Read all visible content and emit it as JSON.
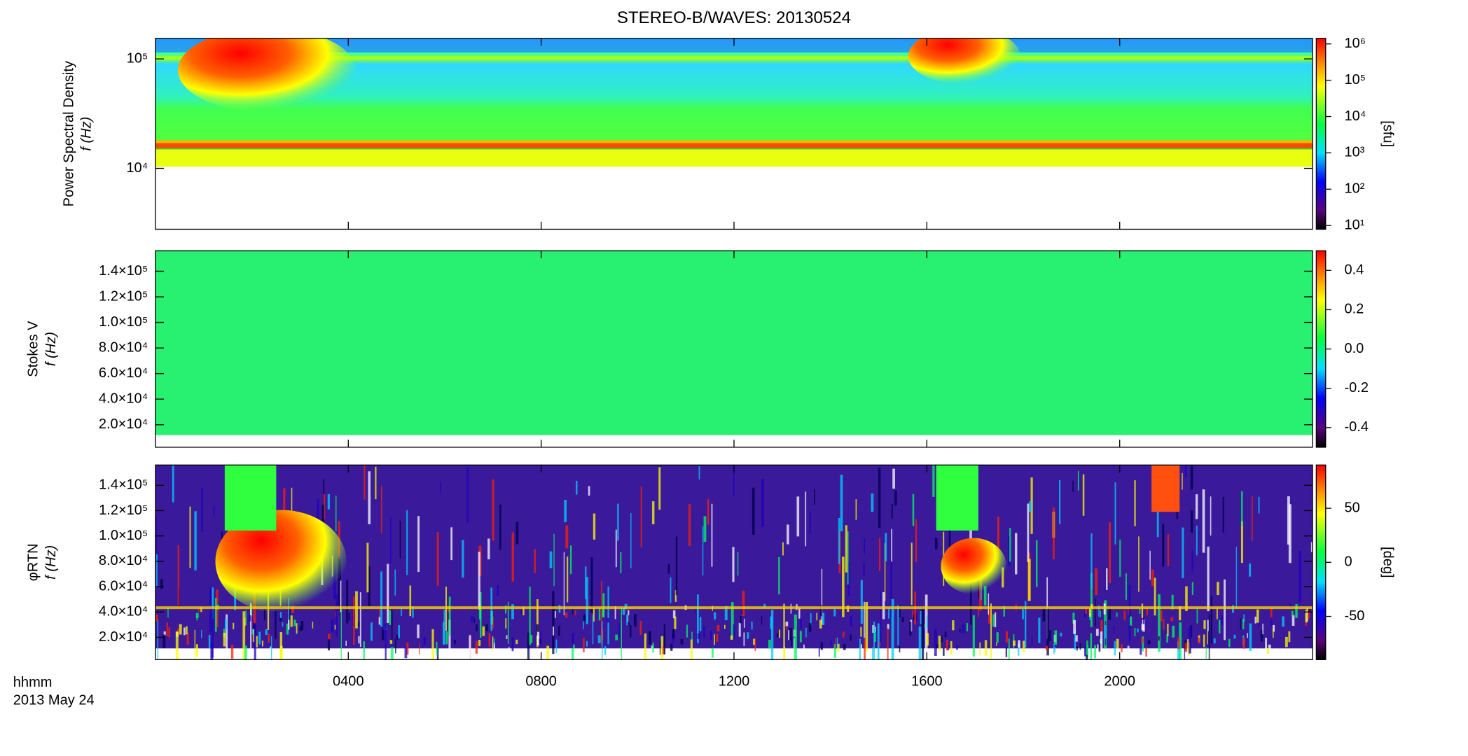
{
  "title": "STEREO-B/WAVES: 20130524",
  "x_label": "hhmm",
  "date_label": "2013 May 24",
  "chart_data": [
    {
      "type": "heatmap",
      "y_label": "Power Spectral Density",
      "y_sublabel": "f (Hz)",
      "log_y": true,
      "ylim": [
        2780,
        154000
      ],
      "yticks": [
        {
          "value": 10000,
          "label": "10⁴"
        },
        {
          "value": 100000,
          "label": "10⁵"
        }
      ],
      "xlim": [
        0,
        24
      ],
      "colorbar": {
        "label": "[sfu]",
        "log": true,
        "lim": [
          7.9,
          1420000
        ],
        "ticks": [
          {
            "value": 10,
            "label": "10¹"
          },
          {
            "value": 100,
            "label": "10²"
          },
          {
            "value": 1000,
            "label": "10³"
          },
          {
            "value": 10000,
            "label": "10⁴"
          },
          {
            "value": 100000,
            "label": "10⁵"
          },
          {
            "value": 1000000,
            "label": "10⁶"
          }
        ]
      }
    },
    {
      "type": "heatmap",
      "y_label": "Stokes V",
      "y_sublabel": "f (Hz)",
      "log_y": false,
      "ylim": [
        2400,
        156000
      ],
      "yticks": [
        {
          "value": 20000,
          "label": "2.0×10⁴"
        },
        {
          "value": 40000,
          "label": "4.0×10⁴"
        },
        {
          "value": 60000,
          "label": "6.0×10⁴"
        },
        {
          "value": 80000,
          "label": "8.0×10⁴"
        },
        {
          "value": 100000,
          "label": "1.0×10⁵"
        },
        {
          "value": 120000,
          "label": "1.2×10⁵"
        },
        {
          "value": 140000,
          "label": "1.4×10⁵"
        }
      ],
      "xlim": [
        0,
        24
      ],
      "colorbar": {
        "label": "",
        "log": false,
        "lim": [
          -0.5,
          0.5
        ],
        "ticks": [
          -0.4,
          -0.2,
          {
            "value": 0,
            "label": "0.0"
          },
          0.2,
          0.4
        ]
      }
    },
    {
      "type": "heatmap",
      "y_label": "φRTN",
      "y_sublabel": "f (Hz)",
      "log_y": false,
      "ylim": [
        2400,
        156000
      ],
      "yticks": [
        {
          "value": 20000,
          "label": "2.0×10⁴"
        },
        {
          "value": 40000,
          "label": "4.0×10⁴"
        },
        {
          "value": 60000,
          "label": "6.0×10⁴"
        },
        {
          "value": 80000,
          "label": "8.0×10⁴"
        },
        {
          "value": 100000,
          "label": "1.0×10⁵"
        },
        {
          "value": 120000,
          "label": "1.2×10⁵"
        },
        {
          "value": 140000,
          "label": "1.4×10⁵"
        }
      ],
      "xlim": [
        0,
        24
      ],
      "xticks": [
        {
          "value": 4,
          "label": "0400"
        },
        {
          "value": 8,
          "label": "0800"
        },
        {
          "value": 12,
          "label": "1200"
        },
        {
          "value": 16,
          "label": "1600"
        },
        {
          "value": 20,
          "label": "2000"
        }
      ],
      "colorbar": {
        "label": "[deg]",
        "log": false,
        "lim": [
          -90,
          90
        ],
        "ticks": [
          -50,
          0,
          50
        ]
      }
    }
  ]
}
